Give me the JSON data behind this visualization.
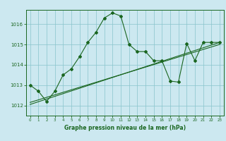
{
  "title": "Graphe pression niveau de la mer (hPa)",
  "bg_color": "#cce8f0",
  "grid_color": "#88c4cc",
  "line_color": "#1a6620",
  "xlim": [
    -0.5,
    23.5
  ],
  "ylim": [
    1011.5,
    1016.7
  ],
  "yticks": [
    1012,
    1013,
    1014,
    1015,
    1016
  ],
  "xticks": [
    0,
    1,
    2,
    3,
    4,
    5,
    6,
    7,
    8,
    9,
    10,
    11,
    12,
    13,
    14,
    15,
    16,
    17,
    18,
    19,
    20,
    21,
    22,
    23
  ],
  "series1_x": [
    0,
    1,
    2,
    3,
    4,
    5,
    6,
    7,
    8,
    9,
    10,
    11,
    12,
    13,
    14,
    15,
    16,
    17,
    18,
    19,
    20,
    21,
    22,
    23
  ],
  "series1_y": [
    1013.0,
    1012.7,
    1012.2,
    1012.7,
    1013.5,
    1013.8,
    1014.4,
    1015.1,
    1015.6,
    1016.3,
    1016.55,
    1016.4,
    1015.0,
    1014.65,
    1014.65,
    1014.2,
    1014.2,
    1013.2,
    1013.15,
    1015.05,
    1014.2,
    1015.1,
    1015.1,
    1015.1
  ],
  "series2_x": [
    0,
    23
  ],
  "series2_y": [
    1012.15,
    1015.0
  ],
  "series3_x": [
    0,
    23
  ],
  "series3_y": [
    1012.05,
    1015.1
  ]
}
